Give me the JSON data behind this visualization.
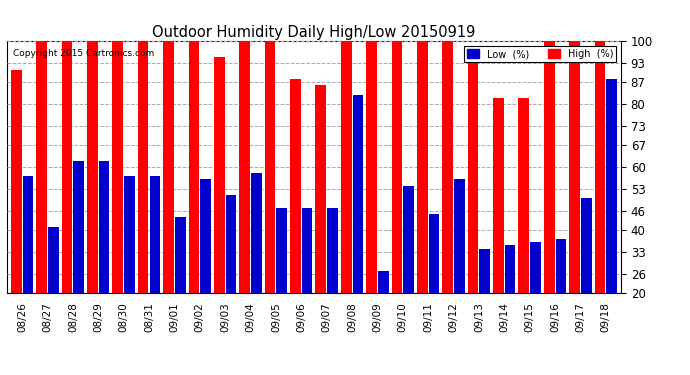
{
  "title": "Outdoor Humidity Daily High/Low 20150919",
  "copyright": "Copyright 2015 Cartronics.com",
  "yticks": [
    20,
    26,
    33,
    40,
    46,
    53,
    60,
    67,
    73,
    80,
    87,
    93,
    100
  ],
  "ylim": [
    20,
    100
  ],
  "background_color": "#ffffff",
  "grid_color": "#aaaaaa",
  "bar_color_high": "#ff0000",
  "bar_color_low": "#0000cc",
  "legend_low_label": "Low  (%)",
  "legend_high_label": "High  (%)",
  "dates": [
    "08/26",
    "08/27",
    "08/28",
    "08/29",
    "08/30",
    "08/31",
    "09/01",
    "09/02",
    "09/03",
    "09/04",
    "09/05",
    "09/06",
    "09/07",
    "09/08",
    "09/09",
    "09/10",
    "09/11",
    "09/12",
    "09/13",
    "09/14",
    "09/15",
    "09/16",
    "09/17",
    "09/18"
  ],
  "highs": [
    91,
    100,
    100,
    100,
    100,
    100,
    100,
    100,
    95,
    100,
    100,
    88,
    86,
    100,
    100,
    100,
    100,
    100,
    96,
    82,
    82,
    100,
    100,
    100
  ],
  "lows": [
    57,
    41,
    62,
    62,
    57,
    57,
    44,
    56,
    51,
    58,
    47,
    47,
    47,
    83,
    27,
    54,
    45,
    56,
    34,
    35,
    36,
    37,
    50,
    88
  ]
}
